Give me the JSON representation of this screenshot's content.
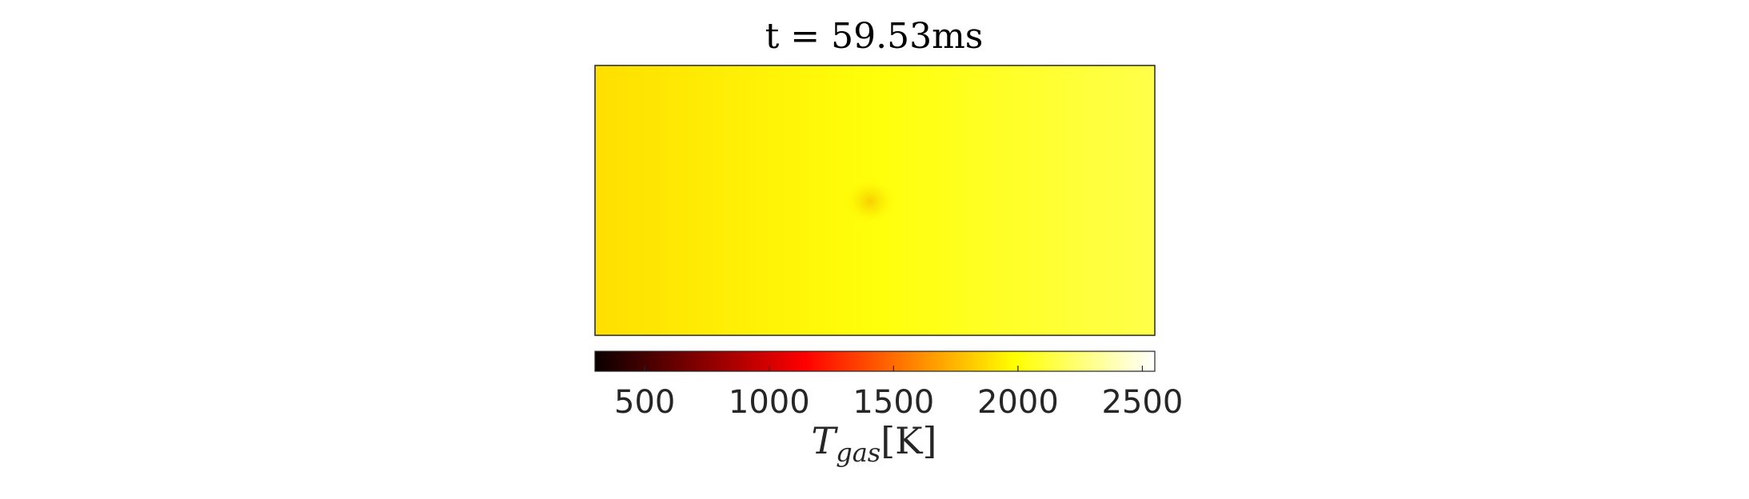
{
  "chart_data": {
    "type": "heatmap",
    "title": "t = 59.53ms",
    "colorbar": {
      "label_main": "T",
      "label_sub": "gas",
      "label_unit": "[K]",
      "range": [
        300,
        2550
      ],
      "ticks": [
        500,
        1000,
        1500,
        2000,
        2500
      ],
      "tick_labels": [
        "500",
        "1000",
        "1500",
        "2000",
        "2500"
      ],
      "colormap": "hot",
      "orientation": "horizontal",
      "placement": "below"
    },
    "field": {
      "description_values_K": {
        "left_edge": 1880,
        "center": 2010,
        "right_edge": 2150
      },
      "hotspot": {
        "value_K": 1960,
        "location": "center"
      }
    },
    "grid": false,
    "legend": "none"
  }
}
